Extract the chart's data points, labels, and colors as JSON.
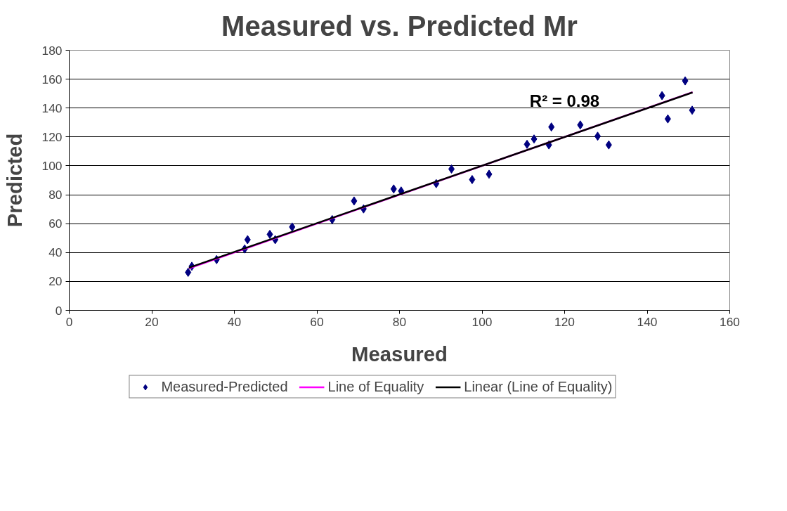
{
  "chart_data": {
    "type": "scatter",
    "title": "Measured vs. Predicted Mr",
    "xlabel": "Measured",
    "ylabel": "Predicted",
    "xlim": [
      0,
      160
    ],
    "xticks": [
      0,
      20,
      40,
      60,
      80,
      100,
      120,
      140,
      160
    ],
    "ylim": [
      0,
      180
    ],
    "yticks": [
      0,
      20,
      40,
      60,
      80,
      100,
      120,
      140,
      160,
      180
    ],
    "grid": "y",
    "legend": "bottom",
    "line_style": "solid",
    "annotations": [
      "R² = 0.98"
    ],
    "series": [
      {
        "name": "Measured-Predicted",
        "marker": "diamond",
        "color": "#000080",
        "x": [
          28.8,
          29.7,
          35.7,
          42.5,
          43.2,
          48.6,
          49.9,
          54.0,
          63.7,
          69.0,
          71.3,
          78.6,
          80.4,
          88.9,
          92.6,
          97.6,
          101.7,
          110.9,
          112.6,
          116.2,
          116.8,
          123.8,
          128.0,
          130.7,
          143.6,
          145.0,
          149.2,
          150.9
        ],
        "values": [
          26.3,
          30.5,
          35.1,
          42.5,
          48.9,
          52.6,
          48.9,
          57.7,
          62.8,
          75.7,
          70.2,
          84.0,
          82.6,
          87.7,
          97.8,
          90.5,
          94.2,
          114.9,
          118.6,
          114.5,
          126.9,
          128.3,
          120.5,
          114.5,
          148.6,
          132.5,
          158.8,
          138.5
        ]
      },
      {
        "name": "Line of Equality",
        "type": "line",
        "color": "#ff00ff",
        "x": [
          29,
          151
        ],
        "values": [
          29,
          151
        ]
      },
      {
        "name": "Linear (Line of Equality)",
        "type": "line",
        "color": "#000000",
        "x": [
          29,
          151
        ],
        "values": [
          29.5,
          150.8
        ]
      }
    ]
  }
}
